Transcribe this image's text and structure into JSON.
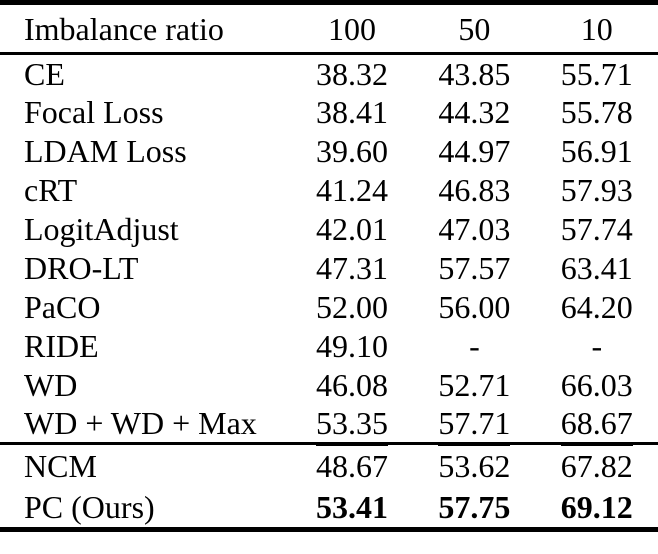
{
  "table": {
    "header": {
      "label": "Imbalance ratio",
      "columns": [
        "100",
        "50",
        "10"
      ]
    },
    "rows": [
      {
        "label": "CE",
        "values": [
          "38.32",
          "43.85",
          "55.71"
        ],
        "emphasis": "none"
      },
      {
        "label": "Focal Loss",
        "values": [
          "38.41",
          "44.32",
          "55.78"
        ],
        "emphasis": "none"
      },
      {
        "label": "LDAM Loss",
        "values": [
          "39.60",
          "44.97",
          "56.91"
        ],
        "emphasis": "none"
      },
      {
        "label": "cRT",
        "values": [
          "41.24",
          "46.83",
          "57.93"
        ],
        "emphasis": "none"
      },
      {
        "label": "LogitAdjust",
        "values": [
          "42.01",
          "47.03",
          "57.74"
        ],
        "emphasis": "none"
      },
      {
        "label": "DRO-LT",
        "values": [
          "47.31",
          "57.57",
          "63.41"
        ],
        "emphasis": "none"
      },
      {
        "label": "PaCO",
        "values": [
          "52.00",
          "56.00",
          "64.20"
        ],
        "emphasis": "none"
      },
      {
        "label": "RIDE",
        "values": [
          "49.10",
          "-",
          "-"
        ],
        "emphasis": "none"
      },
      {
        "label": "WD",
        "values": [
          "46.08",
          "52.71",
          "66.03"
        ],
        "emphasis": "none"
      },
      {
        "label": "WD + WD + Max",
        "values": [
          "53.35",
          "57.71",
          "68.67"
        ],
        "emphasis": "underline"
      }
    ],
    "footer_rows": [
      {
        "label": "NCM",
        "values": [
          "48.67",
          "53.62",
          "67.82"
        ],
        "emphasis": "none"
      },
      {
        "label": "PC (Ours)",
        "values": [
          "53.41",
          "57.75",
          "69.12"
        ],
        "emphasis": "bold"
      }
    ],
    "colors": {
      "text": "#000000",
      "rule": "#000000",
      "background": "#ffffff"
    }
  }
}
